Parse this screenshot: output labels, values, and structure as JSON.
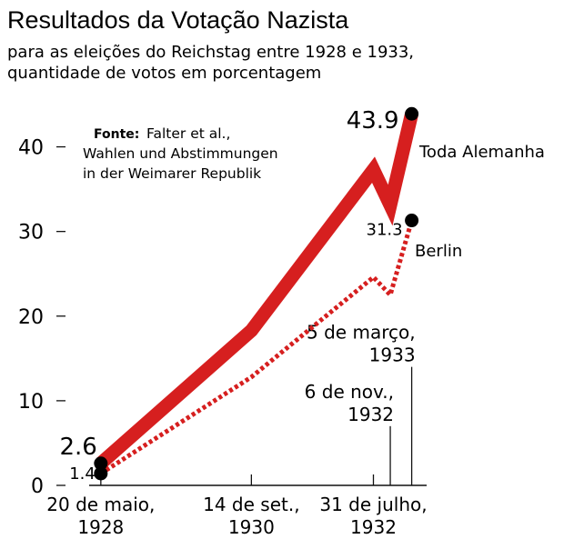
{
  "chart_data": {
    "type": "line",
    "title": "Resultados da Votação Nazista",
    "subtitle_line1": "para as eleições do Reichstag entre 1928 e 1933,",
    "subtitle_line2": "quantidade de votos em porcentagem",
    "source_label": "Fonte:",
    "source_line1": "Falter et al.,",
    "source_line2": "Wahlen und Abstimmungen",
    "source_line3": "in der Weimarer Republik",
    "ylim": [
      0,
      45
    ],
    "yticks": [
      0,
      10,
      20,
      30,
      40
    ],
    "ytick_labels": [
      "0",
      "10",
      "20",
      "30",
      "40"
    ],
    "x": [
      1928.38,
      1930.7,
      1932.58,
      1932.84,
      1933.17
    ],
    "xlim": [
      1928.2,
      1933.4
    ],
    "xticks": [
      {
        "x": 1928.38,
        "line1": "20 de maio,",
        "line2": "1928"
      },
      {
        "x": 1930.7,
        "line1": "14 de set.,",
        "line2": "1930"
      },
      {
        "x": 1932.58,
        "line1": "31 de julho,",
        "line2": "1932"
      }
    ],
    "callouts": [
      {
        "x": 1932.84,
        "line1": "6 de nov.,",
        "line2": "1932",
        "top": 7
      },
      {
        "x": 1933.17,
        "line1": "5 de março,",
        "line2": "1933",
        "top": 14
      }
    ],
    "series": [
      {
        "name": "Toda Alemanha",
        "values": [
          2.6,
          18.3,
          37.3,
          33.1,
          43.9
        ],
        "color": "#d61f1f",
        "style": "solid",
        "start_label": "2.6",
        "end_label": "43.9"
      },
      {
        "name": "Berlin",
        "values": [
          1.4,
          12.8,
          24.6,
          22.5,
          31.3
        ],
        "color": "#d61f1f",
        "style": "dotted",
        "start_label": "1.4",
        "end_label": "31.3"
      }
    ]
  }
}
